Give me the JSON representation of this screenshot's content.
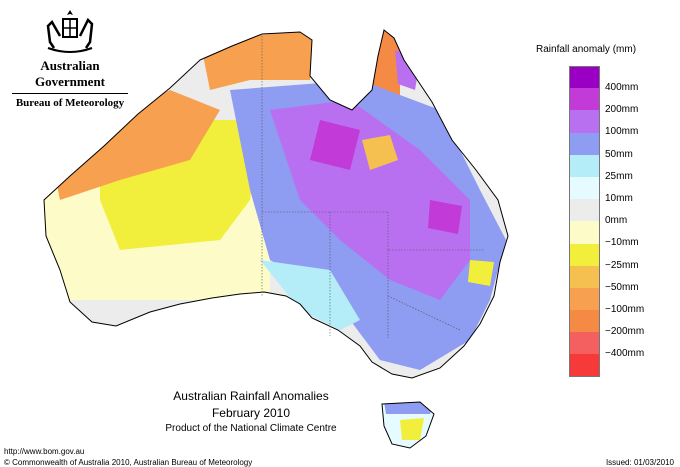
{
  "header": {
    "government": "Australian Government",
    "bureau": "Bureau of Meteorology",
    "crest": "coat-of-arms-icon"
  },
  "legend": {
    "title": "Rainfall anomaly (mm)",
    "items": [
      {
        "label": "400mm",
        "color": "#9a00c4"
      },
      {
        "label": "200mm",
        "color": "#c23ad8"
      },
      {
        "label": "100mm",
        "color": "#b970f0"
      },
      {
        "label": "50mm",
        "color": "#8e9cf2"
      },
      {
        "label": "25mm",
        "color": "#b4ecf8"
      },
      {
        "label": "10mm",
        "color": "#e6fbff"
      },
      {
        "label": "0mm",
        "color": "#ececec"
      },
      {
        "label": "−10mm",
        "color": "#fdfbc8"
      },
      {
        "label": "−25mm",
        "color": "#f2ee3c"
      },
      {
        "label": "−50mm",
        "color": "#f6c050"
      },
      {
        "label": "−100mm",
        "color": "#f6a050"
      },
      {
        "label": "−200mm",
        "color": "#f48a44"
      },
      {
        "label": "−400mm",
        "color": "#f46060"
      },
      {
        "label": "",
        "color": "#f63a3a"
      }
    ]
  },
  "map": {
    "title": "Australian Rainfall Anomalies",
    "period": "February 2010",
    "product": "Product of the National Climate Centre"
  },
  "footer": {
    "url": "http://www.bom.gov.au",
    "copyright": "© Commonwealth of Australia 2010, Australian Bureau of Meteorology",
    "issued": "Issued: 01/03/2010"
  }
}
